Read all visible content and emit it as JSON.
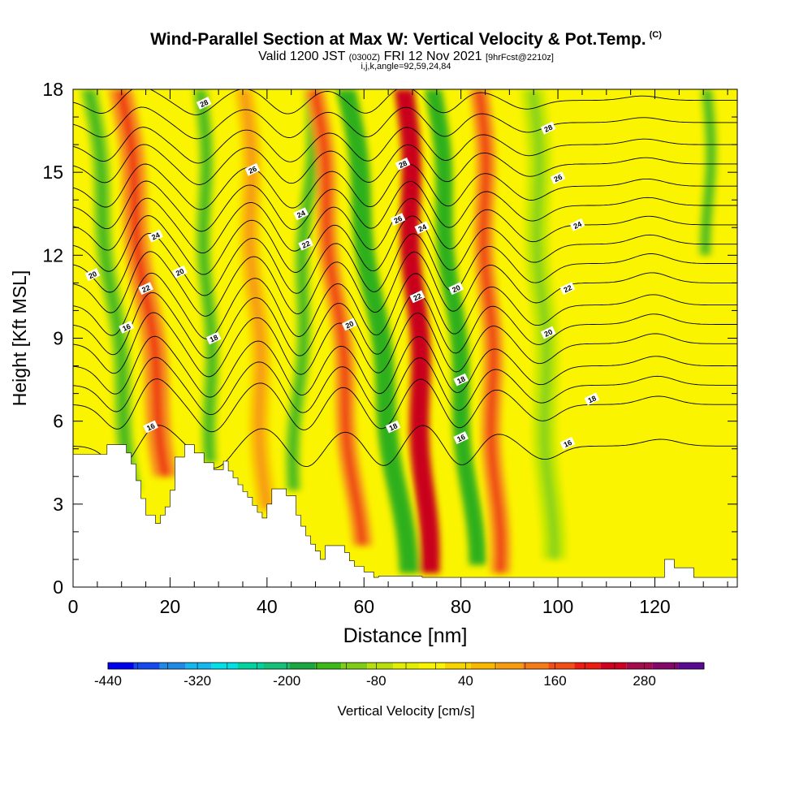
{
  "header": {
    "title": "Wind-Parallel Section at Max W: Vertical Velocity & Pot.Temp.",
    "title_tag": "(C)",
    "subtitle_a": "Valid 1200 JST",
    "subtitle_b": "(0300Z)",
    "subtitle_c": "FRI 12 Nov 2021",
    "subtitle_d": "[9hrFcst@2210z]",
    "params": "i,j,k,angle=92,59,24,84"
  },
  "colors": {
    "background": "#fbf400",
    "updraft_light": "#f9c300",
    "updraft_mid": "#f7901b",
    "updraft_strong": "#ec2d14",
    "updraft_max": "#c9001f",
    "downdraft_light": "#c6e800",
    "downdraft_mid": "#7fd01a",
    "downdraft_strong": "#2fb01e",
    "terrain": "#ffffff",
    "contour": "#000000"
  },
  "chart_data": {
    "type": "heatmap",
    "xlabel": "Distance [nm]",
    "ylabel": "Height [Kft MSL]",
    "xlim": [
      0,
      137
    ],
    "ylim": [
      0,
      18
    ],
    "x_ticks": [
      0,
      20,
      40,
      60,
      80,
      100,
      120
    ],
    "y_ticks": [
      0,
      3,
      6,
      9,
      12,
      15,
      18
    ],
    "colorbar": {
      "label": "Vertical Velocity [cm/s]",
      "min": -440,
      "max": 360,
      "step": 40,
      "tick_labels": [
        "-440",
        "-320",
        "-200",
        "-80",
        "40",
        "160",
        "280"
      ],
      "colors": [
        "#0000ee",
        "#1449ee",
        "#1e8ae6",
        "#15b8ee",
        "#00e0e6",
        "#00d2a0",
        "#16c078",
        "#1ba640",
        "#3eb91c",
        "#80cd16",
        "#b8de0b",
        "#e2ef00",
        "#fbf400",
        "#f9d500",
        "#f9b800",
        "#f79c10",
        "#f47b18",
        "#f24e16",
        "#ed1c10",
        "#cf0020",
        "#a40c4c",
        "#84086a",
        "#5a0a90"
      ]
    },
    "terrain_profile": [
      [
        0,
        4.8
      ],
      [
        7,
        4.8
      ],
      [
        7,
        5.15
      ],
      [
        11,
        5.15
      ],
      [
        11,
        4.85
      ],
      [
        12,
        4.85
      ],
      [
        12,
        4.45
      ],
      [
        13,
        4.45
      ],
      [
        13,
        3.85
      ],
      [
        14,
        3.85
      ],
      [
        14,
        3.2
      ],
      [
        15,
        3.2
      ],
      [
        15,
        2.6
      ],
      [
        17,
        2.6
      ],
      [
        17,
        2.3
      ],
      [
        18,
        2.3
      ],
      [
        18,
        2.6
      ],
      [
        19,
        2.6
      ],
      [
        19,
        2.9
      ],
      [
        20,
        2.9
      ],
      [
        20,
        3.5
      ],
      [
        21,
        3.5
      ],
      [
        21,
        4.7
      ],
      [
        23,
        4.7
      ],
      [
        23,
        5.15
      ],
      [
        25,
        5.15
      ],
      [
        25,
        4.85
      ],
      [
        27,
        4.85
      ],
      [
        27,
        4.5
      ],
      [
        29,
        4.5
      ],
      [
        29,
        4.25
      ],
      [
        31,
        4.25
      ],
      [
        31,
        4.55
      ],
      [
        32,
        4.55
      ],
      [
        32,
        4.2
      ],
      [
        33,
        4.2
      ],
      [
        33,
        3.95
      ],
      [
        34,
        3.95
      ],
      [
        34,
        3.7
      ],
      [
        35,
        3.7
      ],
      [
        35,
        3.45
      ],
      [
        36,
        3.45
      ],
      [
        36,
        3.25
      ],
      [
        37,
        3.25
      ],
      [
        37,
        2.95
      ],
      [
        38,
        2.95
      ],
      [
        38,
        2.7
      ],
      [
        39,
        2.7
      ],
      [
        39,
        2.5
      ],
      [
        40,
        2.5
      ],
      [
        40,
        3.0
      ],
      [
        41,
        3.0
      ],
      [
        41,
        3.55
      ],
      [
        44,
        3.55
      ],
      [
        44,
        3.3
      ],
      [
        46,
        3.3
      ],
      [
        46,
        2.6
      ],
      [
        47,
        2.6
      ],
      [
        47,
        2.2
      ],
      [
        48,
        2.2
      ],
      [
        48,
        1.85
      ],
      [
        49,
        1.85
      ],
      [
        49,
        1.55
      ],
      [
        50,
        1.55
      ],
      [
        50,
        1.3
      ],
      [
        51,
        1.3
      ],
      [
        51,
        1.0
      ],
      [
        52,
        1.0
      ],
      [
        52,
        1.5
      ],
      [
        56,
        1.5
      ],
      [
        56,
        1.25
      ],
      [
        57,
        1.25
      ],
      [
        57,
        0.95
      ],
      [
        58,
        0.95
      ],
      [
        58,
        0.75
      ],
      [
        60,
        0.75
      ],
      [
        60,
        0.55
      ],
      [
        62,
        0.55
      ],
      [
        62,
        0.35
      ],
      [
        63,
        0.35
      ],
      [
        63,
        0.4
      ],
      [
        72,
        0.4
      ],
      [
        72,
        0.35
      ],
      [
        73,
        0.35
      ],
      [
        73,
        0.35
      ],
      [
        122,
        0.35
      ],
      [
        122,
        1.0
      ],
      [
        124,
        1.0
      ],
      [
        124,
        0.7
      ],
      [
        128,
        0.7
      ],
      [
        128,
        0.35
      ],
      [
        137,
        0.35
      ]
    ],
    "vertical_velocity_bands": [
      {
        "x": 9,
        "z0": 3.5,
        "z1": 18,
        "tilt": 1.1,
        "width": 3.5,
        "w": -180
      },
      {
        "x": 16,
        "z0": 4,
        "z1": 18,
        "tilt": 1.2,
        "width": 5,
        "w": 120
      },
      {
        "x": 28,
        "z0": 4.5,
        "z1": 18,
        "tilt": 0.3,
        "width": 3,
        "w": -200
      },
      {
        "x": 38,
        "z0": 2.8,
        "z1": 18,
        "tilt": 0.5,
        "width": 4,
        "w": 80
      },
      {
        "x": 47,
        "z0": 3.5,
        "z1": 18,
        "tilt": -0.5,
        "width": 3,
        "w": -160
      },
      {
        "x": 55,
        "z0": 1.5,
        "z1": 18,
        "tilt": 1.0,
        "width": 4,
        "w": 100
      },
      {
        "x": 63,
        "z0": 0.5,
        "z1": 18,
        "tilt": 1.3,
        "width": 4,
        "w": -240
      },
      {
        "x": 71,
        "z0": 0.5,
        "z1": 18,
        "tilt": 0.5,
        "width": 4,
        "w": 260
      },
      {
        "x": 79,
        "z0": 0.8,
        "z1": 18,
        "tilt": 0.9,
        "width": 3.5,
        "w": -260
      },
      {
        "x": 86,
        "z0": 0.5,
        "z1": 18,
        "tilt": 0.4,
        "width": 4,
        "w": 100
      },
      {
        "x": 97,
        "z0": 1,
        "z1": 18,
        "tilt": 0.4,
        "width": 5,
        "w": -80
      },
      {
        "x": 131,
        "z0": 12,
        "z1": 18,
        "tilt": 0.0,
        "width": 2.5,
        "w": -160
      }
    ],
    "theta_contour_labels": [
      {
        "x": 27,
        "y": 17.5,
        "text": "28"
      },
      {
        "x": 37,
        "y": 15.1,
        "text": "26"
      },
      {
        "x": 47,
        "y": 13.5,
        "text": "24"
      },
      {
        "x": 48,
        "y": 12.4,
        "text": "22"
      },
      {
        "x": 17,
        "y": 12.7,
        "text": "24"
      },
      {
        "x": 4,
        "y": 11.3,
        "text": "20"
      },
      {
        "x": 15,
        "y": 10.8,
        "text": "22"
      },
      {
        "x": 22,
        "y": 11.4,
        "text": "20"
      },
      {
        "x": 11,
        "y": 9.4,
        "text": "16"
      },
      {
        "x": 29,
        "y": 9.0,
        "text": "18"
      },
      {
        "x": 57,
        "y": 9.5,
        "text": "20"
      },
      {
        "x": 16,
        "y": 5.8,
        "text": "16"
      },
      {
        "x": 66,
        "y": 5.8,
        "text": "18"
      },
      {
        "x": 68,
        "y": 15.3,
        "text": "28"
      },
      {
        "x": 67,
        "y": 13.3,
        "text": "26"
      },
      {
        "x": 72,
        "y": 13.0,
        "text": "24"
      },
      {
        "x": 71,
        "y": 10.5,
        "text": "22"
      },
      {
        "x": 79,
        "y": 10.8,
        "text": "20"
      },
      {
        "x": 80,
        "y": 7.5,
        "text": "18"
      },
      {
        "x": 80,
        "y": 5.4,
        "text": "16"
      },
      {
        "x": 98,
        "y": 16.6,
        "text": "28"
      },
      {
        "x": 100,
        "y": 14.8,
        "text": "26"
      },
      {
        "x": 104,
        "y": 13.1,
        "text": "24"
      },
      {
        "x": 102,
        "y": 10.8,
        "text": "22"
      },
      {
        "x": 98,
        "y": 9.2,
        "text": "20"
      },
      {
        "x": 107,
        "y": 6.8,
        "text": "18"
      },
      {
        "x": 102,
        "y": 5.2,
        "text": "16"
      }
    ],
    "theta_contour_base_heights": [
      5.1,
      6.6,
      7.3,
      8.0,
      8.8,
      9.5,
      10.2,
      11.0,
      11.7,
      12.4,
      13.1,
      13.8,
      14.5,
      15.3,
      16.0,
      16.8,
      17.6
    ]
  }
}
